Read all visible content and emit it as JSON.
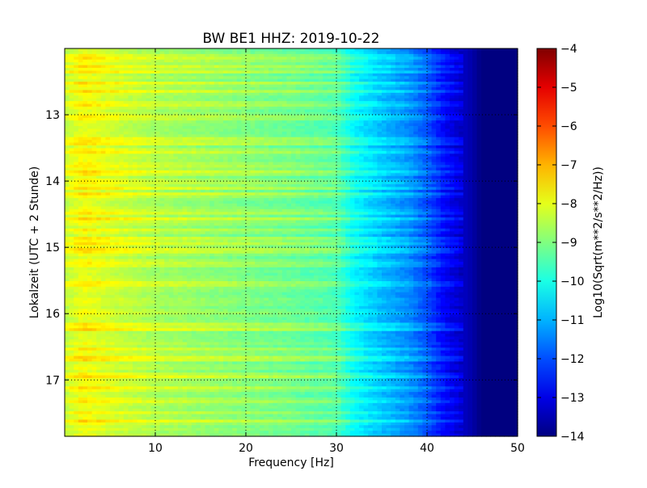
{
  "chart_data": {
    "type": "heatmap",
    "title": "BW BE1 HHZ: 2019-10-22",
    "xlabel": "Frequency [Hz]",
    "ylabel": "Lokalzeit (UTC + 2 Stunde)",
    "xlim": [
      0,
      50
    ],
    "ylim": [
      12.0,
      17.85
    ],
    "y_inverted": true,
    "x_ticks": [
      10,
      20,
      30,
      40,
      50
    ],
    "y_ticks": [
      13,
      14,
      15,
      16,
      17
    ],
    "grid": true,
    "colormap": "jet",
    "colorbar": {
      "label": "Log10(Sqrt(m**2/s**2/Hz))",
      "min": -14,
      "max": -4,
      "ticks": [
        -4,
        -5,
        -6,
        -7,
        -8,
        -9,
        -10,
        -11,
        -12,
        -13,
        -14
      ]
    },
    "z_profile_by_frequency": {
      "frequency_hz": [
        0,
        2,
        5,
        10,
        15,
        20,
        25,
        30,
        32,
        35,
        38,
        40,
        42,
        45,
        46,
        50
      ],
      "log10_amplitude": [
        -8.4,
        -7.9,
        -8.2,
        -8.6,
        -8.8,
        -9.0,
        -9.2,
        -9.5,
        -10.3,
        -10.9,
        -11.4,
        -12.0,
        -12.8,
        -13.6,
        -14.0,
        -14.0
      ]
    },
    "bright_bands_local_hour": [
      12.15,
      12.27,
      12.35,
      12.53,
      12.65,
      12.85,
      13.02,
      13.38,
      13.42,
      13.55,
      13.78,
      13.88,
      14.02,
      14.1,
      14.2,
      14.48,
      14.58,
      14.75,
      14.88,
      14.93,
      15.05,
      15.25,
      15.55,
      16.18,
      16.22,
      16.55,
      16.68,
      16.95,
      17.12,
      17.32,
      17.5,
      17.62
    ]
  }
}
